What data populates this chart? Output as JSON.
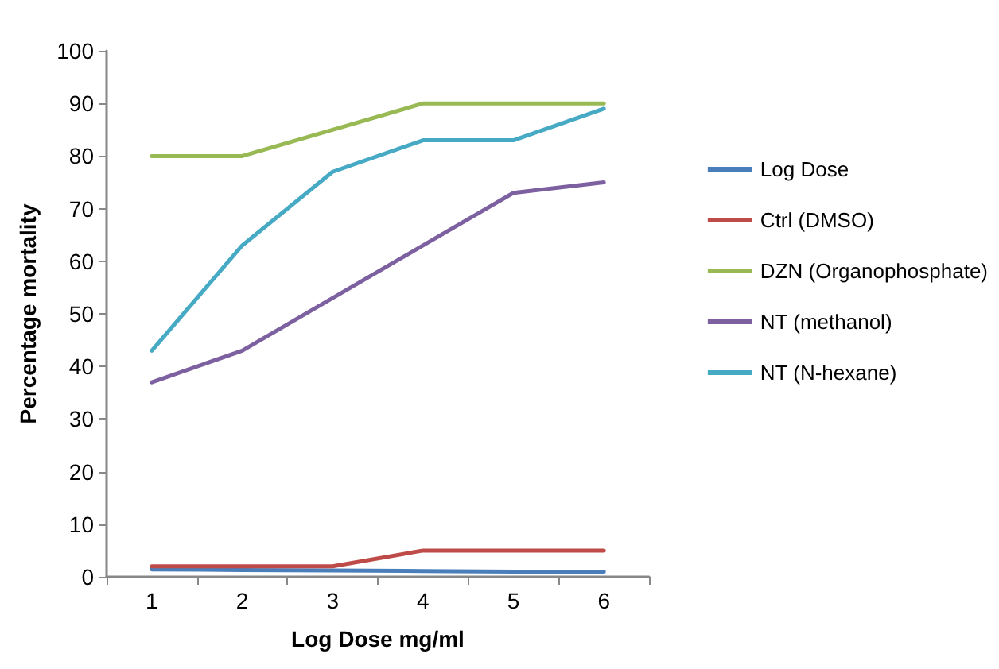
{
  "chart_data": {
    "type": "line",
    "xlabel": "Log Dose mg/ml",
    "ylabel": "Percentage mortality",
    "categories": [
      "1",
      "2",
      "3",
      "4",
      "5",
      "6"
    ],
    "series": [
      {
        "name": "Log Dose",
        "color": "#4a7ebb",
        "values": [
          1.4,
          1.3,
          1.2,
          1.1,
          1.0,
          1.0
        ]
      },
      {
        "name": "Ctrl (DMSO)",
        "color": "#be4b48",
        "values": [
          2,
          2,
          2,
          5,
          5,
          5
        ]
      },
      {
        "name": "DZN (Organophosphate)",
        "color": "#98b954",
        "values": [
          80,
          80,
          85,
          90,
          90,
          90
        ]
      },
      {
        "name": "NT (methanol)",
        "color": "#7d60a0",
        "values": [
          37,
          43,
          53,
          63,
          73,
          75
        ]
      },
      {
        "name": "NT (N-hexane)",
        "color": "#46aac5",
        "values": [
          43,
          63,
          77,
          83,
          83,
          89
        ]
      }
    ],
    "ylim": [
      0,
      100
    ],
    "yticks": [
      0,
      10,
      20,
      30,
      40,
      50,
      60,
      70,
      80,
      90,
      100
    ],
    "grid": false,
    "legend": "right",
    "marker": "none",
    "line_style": "solid"
  }
}
